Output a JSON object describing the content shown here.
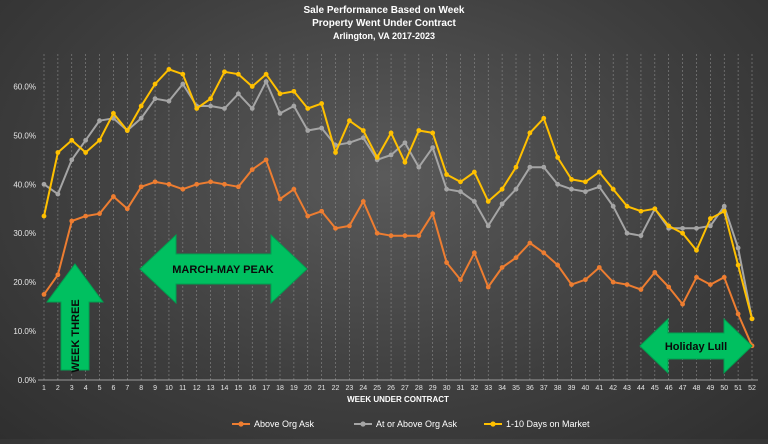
{
  "chart_data": {
    "type": "line",
    "title": [
      "Sale Performance Based on Week",
      "Property Went Under Contract",
      "Arlington, VA 2017-2023"
    ],
    "xlabel": "WEEK UNDER CONTRACT",
    "ylabel": "",
    "ylim": [
      0,
      0.65
    ],
    "yticks": [
      "0.0%",
      "10.0%",
      "20.0%",
      "30.0%",
      "40.0%",
      "50.0%",
      "60.0%"
    ],
    "x": [
      1,
      2,
      3,
      4,
      5,
      6,
      7,
      8,
      9,
      10,
      11,
      12,
      13,
      14,
      15,
      16,
      17,
      18,
      19,
      20,
      21,
      22,
      23,
      24,
      25,
      26,
      27,
      28,
      29,
      30,
      31,
      32,
      33,
      34,
      35,
      36,
      37,
      38,
      39,
      40,
      41,
      42,
      43,
      44,
      45,
      46,
      47,
      48,
      49,
      50,
      51,
      52
    ],
    "grid": "vertical",
    "legend_position": "bottom",
    "series": [
      {
        "name": "Above Org Ask",
        "color": "#ed7d31",
        "values": [
          0.175,
          0.215,
          0.325,
          0.335,
          0.34,
          0.375,
          0.35,
          0.395,
          0.405,
          0.4,
          0.39,
          0.4,
          0.405,
          0.4,
          0.395,
          0.43,
          0.45,
          0.37,
          0.39,
          0.335,
          0.345,
          0.31,
          0.315,
          0.365,
          0.3,
          0.295,
          0.295,
          0.295,
          0.34,
          0.24,
          0.205,
          0.26,
          0.19,
          0.23,
          0.25,
          0.28,
          0.26,
          0.235,
          0.195,
          0.205,
          0.23,
          0.2,
          0.195,
          0.185,
          0.22,
          0.19,
          0.155,
          0.21,
          0.195,
          0.21,
          0.135,
          0.07
        ]
      },
      {
        "name": "At or Above Org Ask",
        "color": "#a5a5a5",
        "values": [
          0.4,
          0.38,
          0.45,
          0.49,
          0.53,
          0.535,
          0.51,
          0.535,
          0.575,
          0.57,
          0.605,
          0.56,
          0.56,
          0.555,
          0.585,
          0.555,
          0.61,
          0.545,
          0.56,
          0.51,
          0.515,
          0.48,
          0.485,
          0.495,
          0.45,
          0.46,
          0.485,
          0.435,
          0.475,
          0.39,
          0.385,
          0.365,
          0.315,
          0.36,
          0.39,
          0.435,
          0.435,
          0.4,
          0.39,
          0.385,
          0.395,
          0.355,
          0.3,
          0.295,
          0.35,
          0.31,
          0.31,
          0.31,
          0.315,
          0.355,
          0.27,
          0.125
        ]
      },
      {
        "name": "1-10 Days on Market",
        "color": "#ffc000",
        "values": [
          0.335,
          0.465,
          0.49,
          0.465,
          0.49,
          0.545,
          0.51,
          0.56,
          0.605,
          0.635,
          0.625,
          0.555,
          0.575,
          0.63,
          0.625,
          0.6,
          0.625,
          0.585,
          0.59,
          0.555,
          0.565,
          0.465,
          0.53,
          0.51,
          0.455,
          0.505,
          0.445,
          0.51,
          0.505,
          0.42,
          0.405,
          0.425,
          0.365,
          0.39,
          0.435,
          0.505,
          0.535,
          0.455,
          0.41,
          0.405,
          0.425,
          0.39,
          0.355,
          0.345,
          0.35,
          0.315,
          0.3,
          0.265,
          0.33,
          0.345,
          0.235,
          0.125
        ]
      }
    ],
    "annotations": [
      {
        "text": "MARCH-MAY PEAK",
        "shape": "double-arrow"
      },
      {
        "text": "WEEK THREE",
        "shape": "up-arrow"
      },
      {
        "text": "Holiday Lull",
        "shape": "double-arrow"
      }
    ]
  }
}
